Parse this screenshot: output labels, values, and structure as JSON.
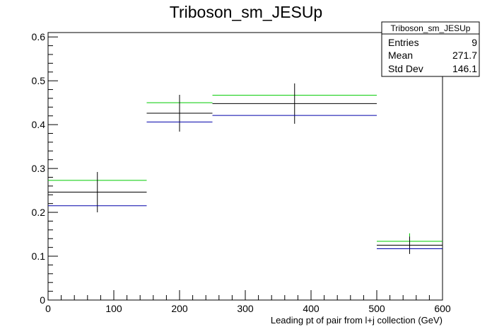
{
  "chart_data": {
    "type": "histogram",
    "title": "Triboson_sm_JESUp",
    "xlabel": "Leading pt of pair from l+j collection (GeV)",
    "ylabel": "",
    "xlim": [
      0,
      600
    ],
    "ylim": [
      0,
      0.61
    ],
    "x_ticks": [
      0,
      100,
      200,
      300,
      400,
      500,
      600
    ],
    "y_ticks": [
      0,
      0.1,
      0.2,
      0.3,
      0.4,
      0.5,
      0.6
    ],
    "x_tick_labels": [
      "0",
      "100",
      "200",
      "300",
      "400",
      "500",
      "600"
    ],
    "y_tick_labels": [
      "0",
      "0.1",
      "0.2",
      "0.3",
      "0.4",
      "0.5",
      "0.6"
    ],
    "bins": [
      {
        "xlow": 0,
        "xhigh": 150,
        "center": 75
      },
      {
        "xlow": 150,
        "xhigh": 250,
        "center": 200
      },
      {
        "xlow": 250,
        "xhigh": 500,
        "center": 375
      },
      {
        "xlow": 500,
        "xhigh": 600,
        "center": 550
      }
    ],
    "series": [
      {
        "color": "#00cc00",
        "values": [
          0.273,
          0.45,
          0.467,
          0.134
        ],
        "errors": [
          0,
          0,
          0,
          0
        ]
      },
      {
        "color": "#000000",
        "values": [
          0.246,
          0.426,
          0.448,
          0.125
        ],
        "errors": [
          0.046,
          0.042,
          0.046,
          0.02
        ]
      },
      {
        "color": "#0000aa",
        "values": [
          0.215,
          0.406,
          0.421,
          0.117
        ],
        "errors": [
          0,
          0,
          0,
          0
        ]
      }
    ],
    "stats_box": {
      "title": "Triboson_sm_JESUp",
      "rows": [
        {
          "label": "Entries",
          "value": "9"
        },
        {
          "label": "Mean",
          "value": "271.7"
        },
        {
          "label": "Std Dev",
          "value": "146.1"
        }
      ]
    }
  }
}
